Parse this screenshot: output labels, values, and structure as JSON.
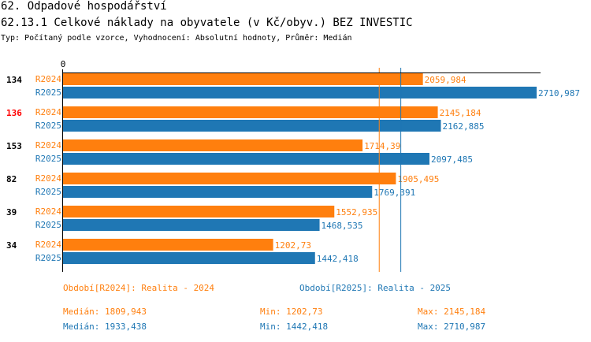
{
  "header": {
    "title": "62. Odpadové hospodářství",
    "subtitle": "62.13.1 Celkové náklady na obyvatele (v Kč/obyv.) BEZ INVESTIC",
    "info": "Typ: Počítaný podle vzorce, Vyhodnocení: Absolutní hodnoty, Průměr: Medián"
  },
  "chart_data": {
    "type": "bar",
    "orientation": "horizontal",
    "xlim": [
      0,
      2710.987
    ],
    "x_tick_labels": [
      "0"
    ],
    "categories": [
      "134",
      "136",
      "153",
      "82",
      "39",
      "34"
    ],
    "highlight_category": "136",
    "series": [
      {
        "name": "R2024",
        "color": "#ff7f0e",
        "values": [
          2059.984,
          2145.184,
          1714.39,
          1905.495,
          1552.935,
          1202.73
        ],
        "labels": [
          "2059,984",
          "2145,184",
          "1714,39",
          "1905,495",
          "1552,935",
          "1202,73"
        ]
      },
      {
        "name": "R2025",
        "color": "#1f77b4",
        "values": [
          2710.987,
          2162.885,
          2097.485,
          1769.391,
          1468.535,
          1442.418
        ],
        "labels": [
          "2710,987",
          "2162,885",
          "2097,485",
          "1769,391",
          "1468,535",
          "1442,418"
        ]
      }
    ],
    "medians": [
      1809.943,
      1933.438
    ]
  },
  "legend": {
    "r2024": "Období[R2024]: Realita - 2024",
    "r2025": "Období[R2025]: Realita - 2025"
  },
  "stats": {
    "r2024": {
      "median": "Medián: 1809,943",
      "min": "Min: 1202,73",
      "max": "Max: 2145,184"
    },
    "r2025": {
      "median": "Medián: 1933,438",
      "min": "Min: 1442,418",
      "max": "Max: 2710,987"
    }
  }
}
